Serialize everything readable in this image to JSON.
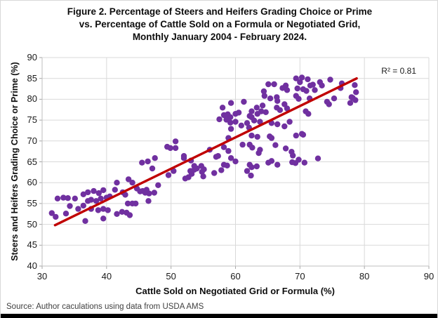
{
  "figure": {
    "title_lines": [
      "Figure 2. Percentage of Steers and Heifers Grading Choice or Prime",
      "vs. Percentage of Cattle Sold on a Formula or Negotiated Grid,",
      "Monthly January 2004 - February 2024."
    ],
    "source_note": "Source: Author caculations using data from USDA AMS"
  },
  "chart_data": {
    "type": "scatter",
    "title": "Figure 2. Percentage of Steers and Heifers Grading Choice or Prime vs. Percentage of Cattle Sold on a Formula or Negotiated Grid, Monthly January 2004 - February 2024.",
    "xlabel": "Cattle Sold on Negotiated Grid or Formula (%)",
    "ylabel": "Steers and Heifers Grading Choice or Prime (%)",
    "xlim": [
      30,
      90
    ],
    "ylim": [
      40,
      90
    ],
    "x_ticks": [
      30,
      40,
      50,
      60,
      70,
      80,
      90
    ],
    "y_ticks": [
      40,
      45,
      50,
      55,
      60,
      65,
      70,
      75,
      80,
      85,
      90
    ],
    "grid": true,
    "legend": "none",
    "annotation": "R² = 0.81",
    "r_squared": 0.81,
    "point_color": "#7030A0",
    "grid_color": "#d9d9d9",
    "axis_color": "#bfbfbf",
    "tick_color": "#a6a6a6",
    "trendline": {
      "color": "#C00000",
      "x1": 32.0,
      "y1": 49.8,
      "x2": 78.8,
      "y2": 85.0
    },
    "points": [
      [
        31.5,
        52.7
      ],
      [
        32.1,
        51.8
      ],
      [
        32.4,
        56.2
      ],
      [
        33.3,
        56.4
      ],
      [
        34.0,
        56.3
      ],
      [
        33.7,
        52.6
      ],
      [
        34.3,
        54.4
      ],
      [
        35.1,
        56.2
      ],
      [
        35.6,
        53.7
      ],
      [
        36.4,
        57.2
      ],
      [
        36.4,
        54.5
      ],
      [
        36.7,
        50.8
      ],
      [
        37.1,
        57.7
      ],
      [
        37.1,
        55.6
      ],
      [
        37.6,
        55.9
      ],
      [
        37.6,
        53.7
      ],
      [
        38.0,
        58.0
      ],
      [
        38.4,
        55.6
      ],
      [
        38.7,
        53.4
      ],
      [
        38.8,
        57.5
      ],
      [
        39.1,
        56.2
      ],
      [
        39.5,
        58.2
      ],
      [
        39.5,
        53.7
      ],
      [
        39.5,
        51.4
      ],
      [
        40.0,
        56.4
      ],
      [
        40.2,
        53.4
      ],
      [
        40.5,
        56.7
      ],
      [
        41.3,
        58.3
      ],
      [
        41.6,
        60.0
      ],
      [
        41.6,
        52.5
      ],
      [
        42.4,
        53.0
      ],
      [
        42.5,
        57.7
      ],
      [
        42.9,
        57.1
      ],
      [
        43.1,
        52.8
      ],
      [
        43.3,
        55.0
      ],
      [
        43.4,
        60.8
      ],
      [
        43.6,
        52.2
      ],
      [
        44.0,
        60.0
      ],
      [
        44.0,
        55.0
      ],
      [
        44.5,
        55.0
      ],
      [
        44.7,
        58.6
      ],
      [
        45.2,
        57.9
      ],
      [
        45.5,
        64.8
      ],
      [
        45.6,
        58.0
      ],
      [
        46.0,
        57.6
      ],
      [
        46.2,
        58.3
      ],
      [
        46.4,
        65.1
      ],
      [
        46.5,
        55.6
      ],
      [
        46.6,
        57.4
      ],
      [
        47.1,
        63.4
      ],
      [
        47.4,
        57.6
      ],
      [
        47.5,
        65.9
      ],
      [
        48.0,
        59.4
      ],
      [
        49.4,
        68.6
      ],
      [
        49.9,
        68.3
      ],
      [
        49.6,
        61.8
      ],
      [
        50.4,
        62.8
      ],
      [
        50.7,
        69.9
      ],
      [
        50.7,
        68.3
      ],
      [
        52.0,
        66.4
      ],
      [
        52.0,
        65.9
      ],
      [
        52.2,
        61.0
      ],
      [
        52.7,
        61.3
      ],
      [
        53.0,
        62.8
      ],
      [
        53.1,
        65.3
      ],
      [
        53.2,
        62.1
      ],
      [
        53.6,
        64.0
      ],
      [
        53.6,
        63.1
      ],
      [
        54.0,
        63.4
      ],
      [
        54.7,
        64.0
      ],
      [
        54.8,
        62.6
      ],
      [
        55.0,
        61.5
      ],
      [
        55.1,
        63.2
      ],
      [
        56.0,
        67.9
      ],
      [
        56.7,
        62.3
      ],
      [
        57.0,
        66.2
      ],
      [
        57.3,
        66.4
      ],
      [
        57.5,
        75.2
      ],
      [
        57.8,
        63.0
      ],
      [
        58.0,
        78.0
      ],
      [
        58.2,
        68.5
      ],
      [
        58.2,
        64.3
      ],
      [
        58.7,
        64.1
      ],
      [
        58.2,
        76.2
      ],
      [
        58.8,
        76.4
      ],
      [
        59.2,
        75.7
      ],
      [
        58.6,
        75.1
      ],
      [
        59.2,
        74.4
      ],
      [
        58.9,
        70.7
      ],
      [
        58.9,
        67.6
      ],
      [
        59.3,
        79.1
      ],
      [
        59.3,
        72.9
      ],
      [
        59.3,
        65.9
      ],
      [
        60.0,
        76.5
      ],
      [
        60.5,
        76.8
      ],
      [
        60.0,
        74.6
      ],
      [
        60.9,
        73.7
      ],
      [
        61.3,
        79.4
      ],
      [
        61.8,
        74.3
      ],
      [
        61.1,
        69.1
      ],
      [
        60.0,
        65.1
      ],
      [
        61.8,
        62.8
      ],
      [
        62.4,
        61.7
      ],
      [
        62.2,
        64.3
      ],
      [
        62.5,
        63.7
      ],
      [
        62.2,
        69.1
      ],
      [
        62.6,
        68.4
      ],
      [
        62.2,
        76.0
      ],
      [
        62.5,
        75.7
      ],
      [
        62.9,
        74.9
      ],
      [
        62.5,
        77.1
      ],
      [
        62.1,
        73.2
      ],
      [
        62.5,
        71.3
      ],
      [
        63.3,
        78.0
      ],
      [
        63.3,
        63.9
      ],
      [
        63.6,
        67.1
      ],
      [
        63.8,
        74.6
      ],
      [
        63.4,
        76.5
      ],
      [
        63.4,
        71.0
      ],
      [
        63.8,
        67.9
      ],
      [
        64.2,
        78.5
      ],
      [
        64.0,
        77.1
      ],
      [
        64.7,
        76.9
      ],
      [
        64.4,
        81.9
      ],
      [
        64.5,
        80.8
      ],
      [
        65.1,
        83.6
      ],
      [
        65.4,
        80.2
      ],
      [
        65.1,
        64.8
      ],
      [
        65.6,
        65.2
      ],
      [
        65.6,
        74.3
      ],
      [
        65.6,
        70.7
      ],
      [
        65.3,
        71.1
      ],
      [
        66.0,
        83.6
      ],
      [
        66.4,
        80.5
      ],
      [
        66.5,
        79.6
      ],
      [
        66.4,
        78.0
      ],
      [
        66.9,
        77.4
      ],
      [
        66.5,
        74.0
      ],
      [
        66.5,
        64.3
      ],
      [
        66.2,
        69.0
      ],
      [
        67.3,
        82.7
      ],
      [
        67.8,
        83.3
      ],
      [
        68.0,
        82.2
      ],
      [
        67.6,
        78.8
      ],
      [
        68.0,
        77.8
      ],
      [
        67.6,
        73.5
      ],
      [
        67.8,
        68.2
      ],
      [
        68.4,
        74.6
      ],
      [
        68.7,
        67.4
      ],
      [
        68.9,
        66.5
      ],
      [
        68.8,
        64.9
      ],
      [
        69.3,
        64.7
      ],
      [
        69.4,
        85.0
      ],
      [
        69.6,
        82.6
      ],
      [
        69.4,
        80.8
      ],
      [
        69.8,
        80.1
      ],
      [
        69.4,
        71.3
      ],
      [
        69.8,
        65.5
      ],
      [
        70.3,
        85.2
      ],
      [
        70.0,
        84.1
      ],
      [
        70.5,
        82.4
      ],
      [
        70.3,
        71.7
      ],
      [
        70.5,
        71.5
      ],
      [
        70.7,
        64.8
      ],
      [
        70.9,
        77.1
      ],
      [
        71.3,
        76.5
      ],
      [
        71.2,
        84.8
      ],
      [
        71.6,
        83.3
      ],
      [
        72.0,
        83.5
      ],
      [
        72.3,
        82.2
      ],
      [
        71.5,
        80.2
      ],
      [
        71.0,
        82.0
      ],
      [
        72.8,
        65.8
      ],
      [
        73.1,
        84.1
      ],
      [
        73.4,
        83.3
      ],
      [
        74.7,
        84.7
      ],
      [
        74.2,
        79.4
      ],
      [
        74.5,
        78.8
      ],
      [
        75.3,
        80.2
      ],
      [
        76.5,
        83.8
      ],
      [
        76.3,
        82.7
      ],
      [
        77.8,
        79.1
      ],
      [
        78.0,
        80.5
      ],
      [
        78.5,
        83.4
      ],
      [
        78.7,
        81.7
      ],
      [
        78.2,
        80.3
      ],
      [
        78.6,
        79.8
      ]
    ]
  }
}
